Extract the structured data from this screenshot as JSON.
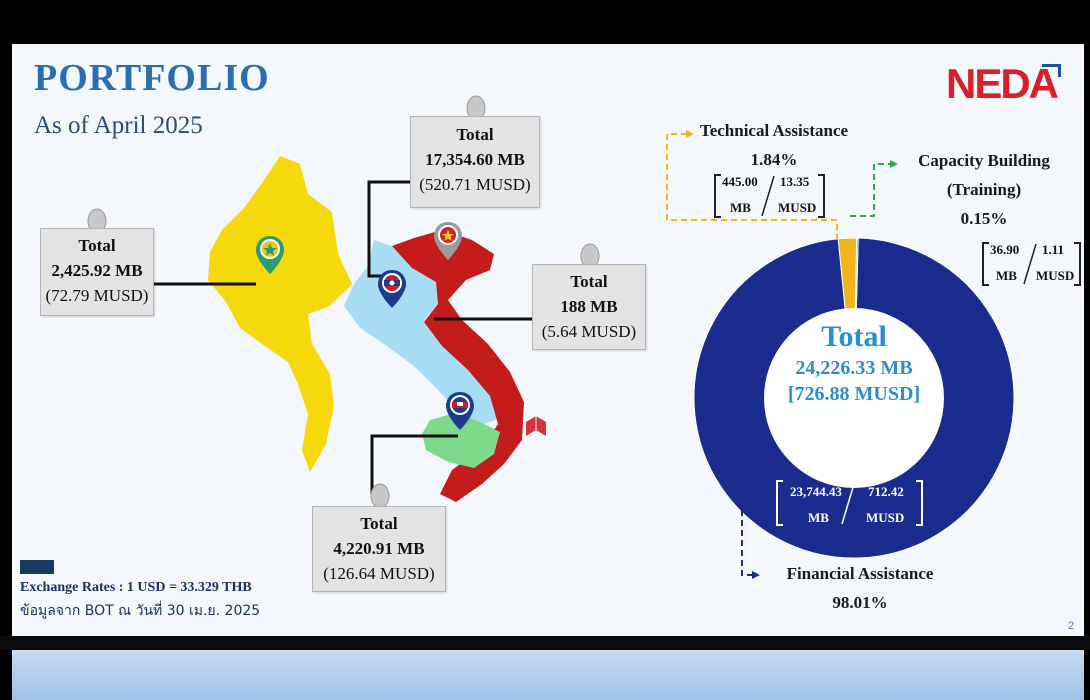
{
  "header": {
    "title": "PORTFOLIO",
    "subtitle": "As of April 2025",
    "logo_text": "NEDA",
    "page_number": "2"
  },
  "colors": {
    "myanmar": "#f5d90d",
    "laos": "#a7dcf5",
    "vietnam": "#c41b1b",
    "cambodia": "#7fd98a",
    "financial": "#1a2d8f",
    "technical": "#f2b519",
    "capacity": "#2aa84a",
    "title": "#2b6fb3",
    "center_text": "#2a8fcf"
  },
  "map_labels": {
    "myanmar": {
      "title": "Total",
      "mb": "2,425.92 MB",
      "usd": "(72.79 MUSD)",
      "pin_icon": "myanmar-flag-pin-icon"
    },
    "laos": {
      "title": "Total",
      "mb": "17,354.60 MB",
      "usd": "(520.71 MUSD)",
      "pin_icon": "laos-flag-pin-icon"
    },
    "vietnam": {
      "title": "Total",
      "mb": "188 MB",
      "usd": "(5.64 MUSD)",
      "pin_icon": "vietnam-flag-pin-icon"
    },
    "cambodia": {
      "title": "Total",
      "mb": "4,220.91 MB",
      "usd": "(126.64 MUSD)",
      "pin_icon": "cambodia-flag-pin-icon"
    }
  },
  "footer": {
    "exchange_rate": "Exchange Rates : 1 USD = 33.329 THB",
    "source": "ข้อมูลจาก BOT ณ วันที่ 30 เม.ย. 2025"
  },
  "chart_data": {
    "type": "pie",
    "title": "",
    "center": {
      "title": "Total",
      "mb": "24,226.33 MB",
      "usd": "[726.88 MUSD]"
    },
    "categories": [
      "Financial Assistance",
      "Technical Assistance",
      "Capacity Building (Training)"
    ],
    "values": [
      98.01,
      1.84,
      0.15
    ],
    "value_labels": [
      "98.01%",
      "1.84%",
      "0.15%"
    ],
    "mb_values": [
      "23,744.43",
      "445.00",
      "36.90"
    ],
    "musd_values": [
      "712.42",
      "13.35",
      "1.11"
    ],
    "unit_mb": "MB",
    "unit_musd": "MUSD",
    "label_lines": {
      "technical": "Technical Assistance",
      "capacity_1": "Capacity Building",
      "capacity_2": "(Training)",
      "financial": "Financial Assistance"
    }
  }
}
